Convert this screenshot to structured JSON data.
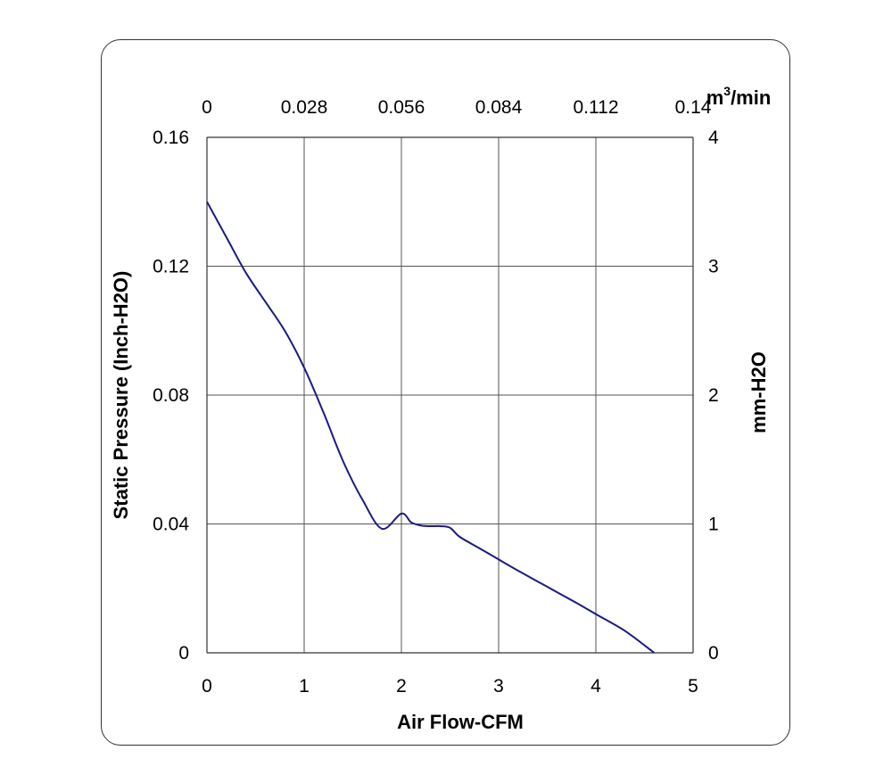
{
  "chart_data": {
    "type": "line",
    "title": "",
    "xlabel": "Air Flow-CFM",
    "ylabel": "Static Pressure (Inch-H2O)",
    "secondary_xlabel": {
      "base": "m",
      "sup": "3",
      "rest": "/min"
    },
    "secondary_ylabel": "mm-H2O",
    "xlim": [
      0,
      5
    ],
    "ylim": [
      0,
      0.16
    ],
    "secondary_xlim": [
      0,
      0.14
    ],
    "secondary_ylim": [
      0,
      4
    ],
    "x_ticks": [
      "0",
      "1",
      "2",
      "3",
      "4",
      "5"
    ],
    "y_ticks": [
      "0",
      "0.04",
      "0.08",
      "0.12",
      "0.16"
    ],
    "top_ticks": [
      "0",
      "0.028",
      "0.056",
      "0.084",
      "0.112",
      "0.14"
    ],
    "right_ticks": [
      "0",
      "1",
      "2",
      "3",
      "4"
    ],
    "grid": true,
    "series": [
      {
        "color": "#1a1a80",
        "x": [
          0,
          0.2,
          0.4,
          0.6,
          0.8,
          1.0,
          1.2,
          1.4,
          1.6,
          1.8,
          2.0,
          2.1,
          2.2,
          2.3,
          2.4,
          2.5,
          2.6,
          2.8,
          3.0,
          3.2,
          3.5,
          3.8,
          4.0,
          4.3,
          4.6
        ],
        "y": [
          0.14,
          0.129,
          0.118,
          0.109,
          0.1,
          0.0885,
          0.0745,
          0.0595,
          0.0475,
          0.0385,
          0.0432,
          0.0405,
          0.0395,
          0.0393,
          0.0393,
          0.0388,
          0.036,
          0.0325,
          0.029,
          0.0255,
          0.0205,
          0.0155,
          0.012,
          0.0068,
          0.0
        ]
      }
    ]
  }
}
